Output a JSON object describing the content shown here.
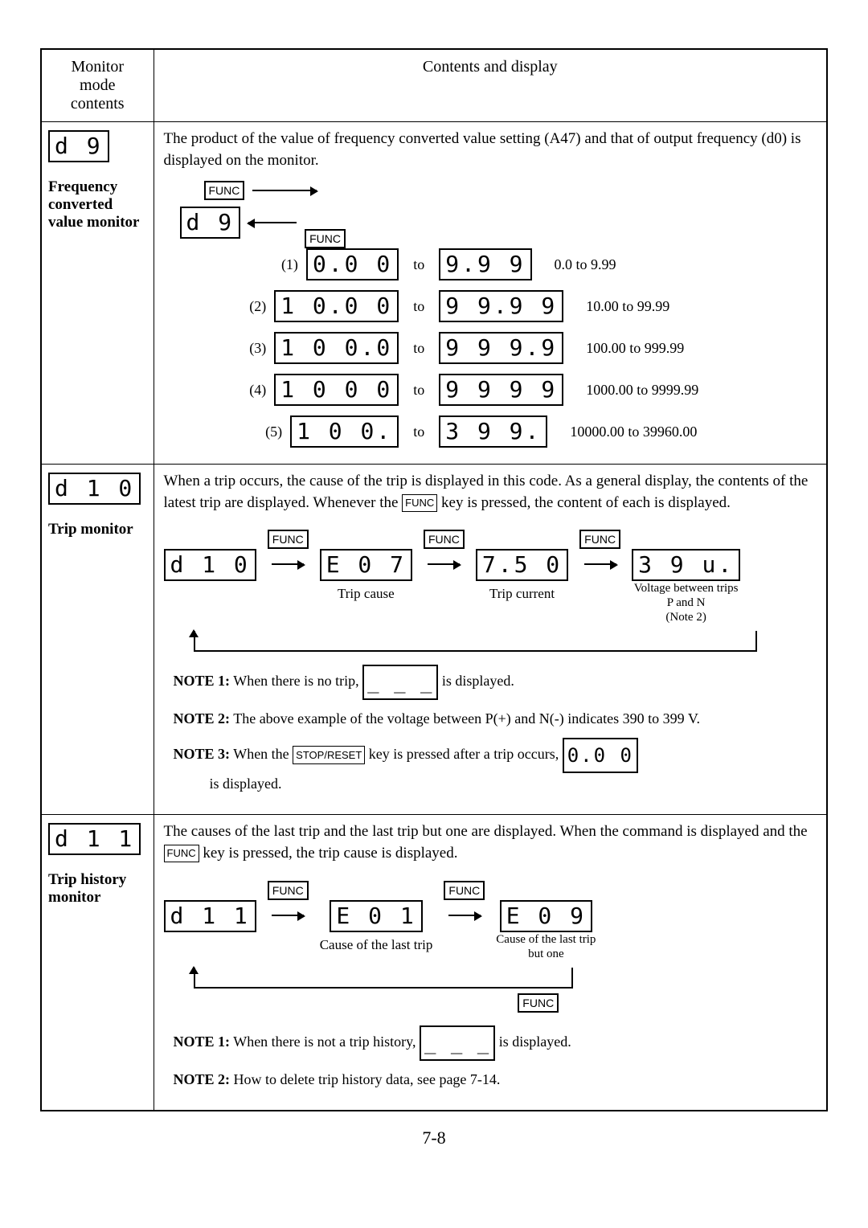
{
  "headers": {
    "left": "Monitor\nmode\ncontents",
    "right": "Contents and display"
  },
  "page_number": "7-8",
  "func_label": "FUNC",
  "stop_reset_label": "STOP/RESET",
  "sections": {
    "freq": {
      "title": "Frequency converted value monitor",
      "code_display": "d  9",
      "intro": "The product of the value of frequency converted value setting (A47) and that of output frequency (d0) is displayed on the monitor.",
      "rows": [
        {
          "n": "(1)",
          "from": "0.0 0",
          "to": "9.9 9",
          "range": "0.0 to 9.99"
        },
        {
          "n": "(2)",
          "from": "1 0.0 0",
          "to": "9 9.9 9",
          "range": "10.00 to 99.99"
        },
        {
          "n": "(3)",
          "from": "1 0 0.0",
          "to": "9 9 9.9",
          "range": "100.00 to 999.99"
        },
        {
          "n": "(4)",
          "from": "1 0 0 0",
          "to": "9 9 9 9",
          "range": "1000.00 to 9999.99"
        },
        {
          "n": "(5)",
          "from": "1 0 0.",
          "to": "3 9 9.",
          "range": "10000.00 to 39960.00"
        }
      ]
    },
    "trip": {
      "title": "Trip monitor",
      "code_display": "d 1 0",
      "intro_a": "When a trip occurs, the cause of the trip is displayed in this code.  As a general display, the contents of the latest trip are displayed.  Whenever the",
      "intro_b": "key is pressed, the content of each is displayed.",
      "flow": [
        {
          "disp": "d 1 0",
          "cap": ""
        },
        {
          "disp": "E 0 7",
          "cap": "Trip cause"
        },
        {
          "disp": "7.5 0",
          "cap": "Trip current"
        },
        {
          "disp": "3 9 u.",
          "cap": "Voltage between trips\nP and N\n(Note 2)"
        }
      ],
      "notes": [
        {
          "pre": "NOTE 1:",
          "a": "When there is no trip,",
          "disp": "_ _ _",
          "b": "is displayed."
        },
        {
          "pre": "NOTE 2:",
          "a": "The above example of the voltage between P(+) and N(-) indicates 390 to 399 V."
        },
        {
          "pre": "NOTE 3:",
          "a": "When the",
          "key": "STOP/RESET",
          "b": "key is pressed after a trip occurs,",
          "disp": "0.0 0",
          "c": "is displayed."
        }
      ]
    },
    "history": {
      "title": "Trip history monitor",
      "code_display": "d 1 1",
      "intro_a": "The causes of the last trip and the last trip but one are displayed.  When the command is displayed and the",
      "intro_b": "key is pressed, the trip cause is displayed.",
      "flow": [
        {
          "disp": "d 1 1",
          "cap": ""
        },
        {
          "disp": "E 0 1",
          "cap": "Cause of the last trip"
        },
        {
          "disp": "E 0 9",
          "cap": "Cause of the last trip\nbut one"
        }
      ],
      "notes": [
        {
          "pre": "NOTE 1:",
          "a": "When there is not a trip history,",
          "disp": "_ _ _",
          "b": "is displayed."
        },
        {
          "pre": "NOTE 2:",
          "a": "How to delete trip history data, see page 7-14."
        }
      ]
    }
  }
}
